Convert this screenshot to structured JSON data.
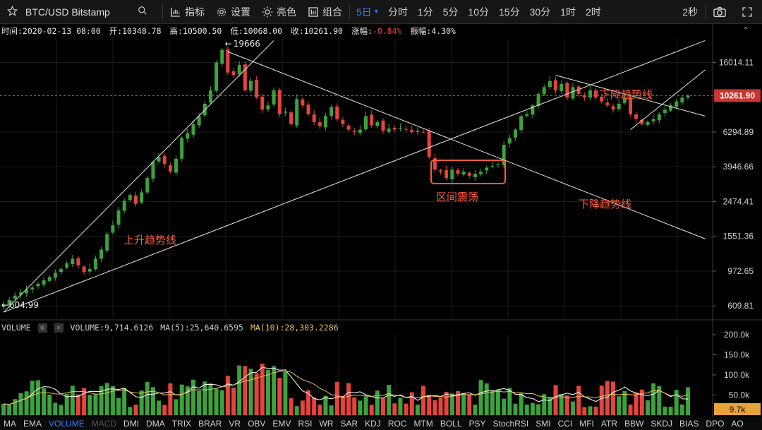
{
  "toolbar": {
    "symbol": "BTC/USD Bitstamp",
    "indicators_label": "指标",
    "settings_label": "设置",
    "theme_label": "亮色",
    "combo_label": "组合",
    "timeframes": [
      {
        "label": "5日",
        "active": true
      },
      {
        "label": "分时",
        "active": false
      },
      {
        "label": "1分",
        "active": false
      },
      {
        "label": "5分",
        "active": false
      },
      {
        "label": "10分",
        "active": false
      },
      {
        "label": "15分",
        "active": false
      },
      {
        "label": "30分",
        "active": false
      },
      {
        "label": "1时",
        "active": false
      },
      {
        "label": "2时",
        "active": false
      }
    ],
    "refresh_label": "2秒"
  },
  "info": {
    "time": "时间:2020-02-13 08:00",
    "open": "开:10348.78",
    "high": "高:10500.50",
    "low": "低:10068.00",
    "close": "收:10261.90",
    "change_label": "涨幅:",
    "change_value": "-0.84%",
    "amplitude": "振幅:4.30%"
  },
  "chart_data": {
    "type": "candlestick",
    "y_scale": "log",
    "ylim": [
      520,
      22000
    ],
    "y_ticks": [
      "16014.11",
      "6294.89",
      "3946.66",
      "2474.41",
      "1551.36",
      "972.65",
      "609.81"
    ],
    "current_price": "10261.90",
    "annotations": {
      "high": "19666",
      "low": "604.99",
      "uptrend": "上升趋势线",
      "range": "区间震荡",
      "downtrend_1": "下降趋势线",
      "downtrend_2": "下降趋势线"
    },
    "price_series_note": "approximate daily closes read from chart",
    "closes": [
      620,
      660,
      700,
      730,
      760,
      780,
      820,
      860,
      900,
      950,
      1000,
      1080,
      1150,
      1050,
      960,
      1000,
      1150,
      1300,
      1600,
      1800,
      2200,
      2500,
      2700,
      2400,
      2800,
      3400,
      4200,
      4500,
      4100,
      3700,
      4400,
      5800,
      6200,
      7000,
      7800,
      9200,
      11000,
      16000,
      19000,
      14000,
      13500,
      15500,
      11000,
      12500,
      10000,
      8500,
      9000,
      11000,
      8000,
      8300,
      7000,
      9800,
      9000,
      8000,
      7200,
      6800,
      7800,
      8800,
      7500,
      7000,
      6500,
      6300,
      6500,
      7800,
      6900,
      7200,
      6400,
      6600,
      6500,
      6600,
      6500,
      6300,
      6400,
      6300,
      4500,
      3800,
      3700,
      3400,
      3800,
      3600,
      3700,
      3500,
      3600,
      3700,
      3900,
      4000,
      4100,
      5300,
      5800,
      6500,
      7800,
      8000,
      9000,
      10500,
      11500,
      12500,
      11000,
      12000,
      10000,
      11500,
      10500,
      10000,
      11000,
      10000,
      9500,
      9000,
      8500,
      9200,
      10000,
      8000,
      7500,
      7000,
      7200,
      7500,
      8000,
      8500,
      9000,
      9500,
      10000,
      10261.9
    ],
    "volume": {
      "label": "VOLUME",
      "value": "VOLUME:9,714.6126",
      "ma5": "MA(5):25,640.6595",
      "ma10": "MA(10):28,303.2286",
      "y_ticks": [
        "200.0k",
        "150.0k",
        "100.0k",
        "50.0k"
      ],
      "current": "9.7k"
    }
  },
  "indicators": [
    {
      "label": "MA",
      "state": "normal"
    },
    {
      "label": "EMA",
      "state": "normal"
    },
    {
      "label": "VOLUME",
      "state": "active"
    },
    {
      "label": "MACD",
      "state": "dim"
    },
    {
      "label": "DMI",
      "state": "normal"
    },
    {
      "label": "DMA",
      "state": "normal"
    },
    {
      "label": "TRIX",
      "state": "normal"
    },
    {
      "label": "BRAR",
      "state": "normal"
    },
    {
      "label": "VR",
      "state": "normal"
    },
    {
      "label": "OBV",
      "state": "normal"
    },
    {
      "label": "EMV",
      "state": "normal"
    },
    {
      "label": "RSI",
      "state": "normal"
    },
    {
      "label": "WR",
      "state": "normal"
    },
    {
      "label": "SAR",
      "state": "normal"
    },
    {
      "label": "KDJ",
      "state": "normal"
    },
    {
      "label": "ROC",
      "state": "normal"
    },
    {
      "label": "MTM",
      "state": "normal"
    },
    {
      "label": "BOLL",
      "state": "normal"
    },
    {
      "label": "PSY",
      "state": "normal"
    },
    {
      "label": "StochRSI",
      "state": "normal"
    },
    {
      "label": "SMI",
      "state": "normal"
    },
    {
      "label": "CCI",
      "state": "normal"
    },
    {
      "label": "MFI",
      "state": "normal"
    },
    {
      "label": "ATR",
      "state": "normal"
    },
    {
      "label": "BBW",
      "state": "normal"
    },
    {
      "label": "SKDJ",
      "state": "normal"
    },
    {
      "label": "BIAS",
      "state": "normal"
    },
    {
      "label": "DPO",
      "state": "normal"
    },
    {
      "label": "AO",
      "state": "normal"
    }
  ],
  "colors": {
    "up": "#3ca23c",
    "down": "#e5443c",
    "accent": "#2f7fff",
    "annotation": "#ff5a3c",
    "ma10": "#e8c35a"
  }
}
